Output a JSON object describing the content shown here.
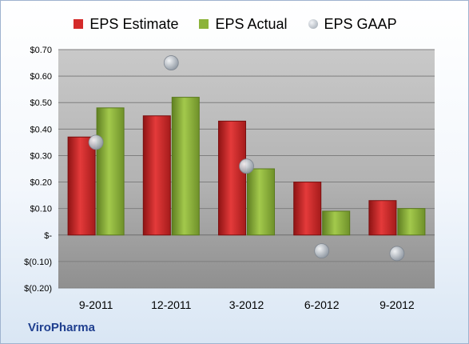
{
  "chart_data": {
    "type": "bar",
    "categories": [
      "9-2011",
      "12-2011",
      "3-2012",
      "6-2012",
      "9-2012"
    ],
    "series": [
      {
        "name": "EPS Estimate",
        "kind": "bar",
        "color": "#d42a2a",
        "values": [
          0.37,
          0.45,
          0.43,
          0.2,
          0.13
        ]
      },
      {
        "name": "EPS Actual",
        "kind": "bar",
        "color": "#8cb33a",
        "values": [
          0.48,
          0.52,
          0.25,
          0.09,
          0.1
        ]
      },
      {
        "name": "EPS GAAP",
        "kind": "point",
        "color": "#b9c1cc",
        "values": [
          0.35,
          0.65,
          0.26,
          -0.06,
          -0.07
        ]
      }
    ],
    "ylim": [
      -0.2,
      0.7
    ],
    "yticks": [
      0.7,
      0.6,
      0.5,
      0.4,
      0.3,
      0.2,
      0.1,
      0,
      -0.1,
      -0.2
    ],
    "ytick_labels": [
      "$0.70",
      "$0.60",
      "$0.50",
      "$0.40",
      "$0.30",
      "$0.20",
      "$0.10",
      "$-",
      "$(0.10)",
      "$(0.20)"
    ],
    "legend_position": "top",
    "grid": true
  },
  "company": "ViroPharma"
}
